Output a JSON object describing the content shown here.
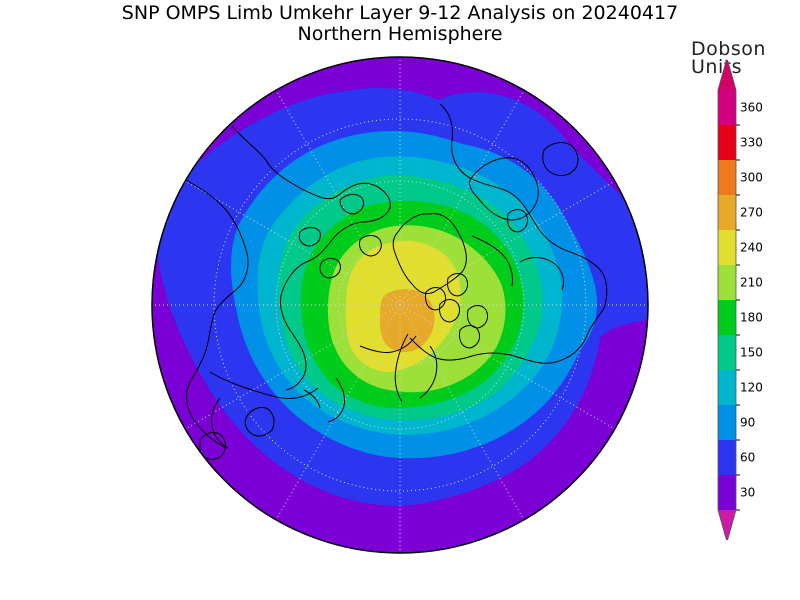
{
  "title": "SNP OMPS Limb Umkehr Layer 9-12 Analysis on 20240417",
  "subtitle": "Northern Hemisphere",
  "legend": {
    "unit_line1": "Dobson",
    "unit_line2": "Units",
    "levels": [
      {
        "value": 30,
        "label": "30",
        "color": "#7a00d6"
      },
      {
        "value": 60,
        "label": "60",
        "color": "#2c36f0"
      },
      {
        "value": 90,
        "label": "90",
        "color": "#0090e8"
      },
      {
        "value": 120,
        "label": "120",
        "color": "#00b6cf"
      },
      {
        "value": 150,
        "label": "150",
        "color": "#00c98a"
      },
      {
        "value": 180,
        "label": "180",
        "color": "#00cc1c"
      },
      {
        "value": 210,
        "label": "210",
        "color": "#9ee03a"
      },
      {
        "value": 240,
        "label": "240",
        "color": "#e2de2e"
      },
      {
        "value": 270,
        "label": "270",
        "color": "#e6a92a"
      },
      {
        "value": 300,
        "label": "300",
        "color": "#ee7a1e"
      },
      {
        "value": 330,
        "label": "330",
        "color": "#e60018"
      },
      {
        "value": 360,
        "label": "360",
        "color": "#d2007e"
      }
    ],
    "below_min_color": "#cc1aa8",
    "above_max_color": "#d4006a"
  },
  "map": {
    "projection": "polar stereographic, north pole",
    "grid": "dotted lat/lon",
    "fill_colors": {
      "outer": "#7a00d6",
      "ring_60": "#2c36f0",
      "ring_90": "#0090e8",
      "ring_120": "#00b6cf",
      "ring_150": "#00c98a",
      "ring_180": "#00cc1c",
      "ring_210": "#9ee03a",
      "ring_240": "#e2de2e",
      "core_270": "#e6a92a"
    },
    "coastline_color": "#000000",
    "grid_color": "#d8d8d8"
  }
}
